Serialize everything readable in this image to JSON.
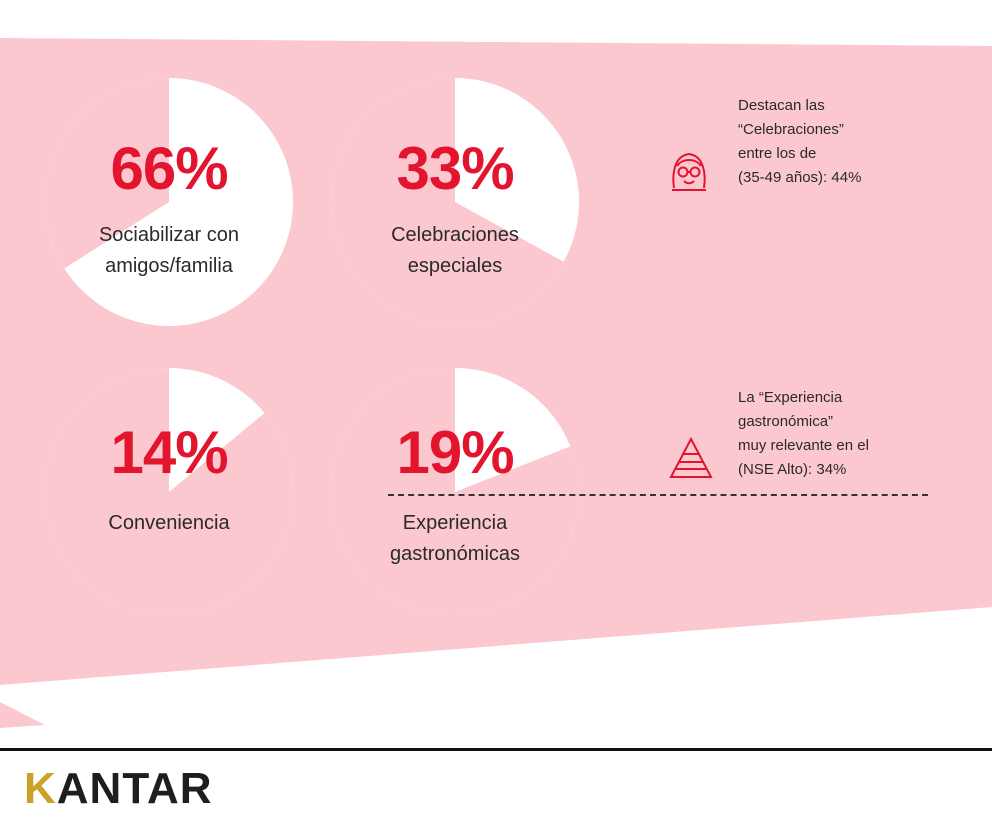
{
  "chart_data": {
    "type": "pie",
    "slices": [
      {
        "label": "Sociabilizar con amigos/familia",
        "value": 66,
        "display": "66%"
      },
      {
        "label": "Celebraciones especiales",
        "value": 33,
        "display": "33%"
      },
      {
        "label": "Conveniencia",
        "value": 14,
        "display": "14%"
      },
      {
        "label": "Experiencia gastronómicas",
        "value": 19,
        "display": "19%"
      }
    ],
    "annotations": [
      "Destacan las\n“Celebraciones”\nentre los de\n(35-49 años): 44%",
      "La “Experiencia\ngastronómica”\nmuy relevante en el\n(NSE Alto): 34%"
    ]
  },
  "colors": {
    "background_band": "#fcc8d0",
    "accent": "#e3142e",
    "circle": "#ffffff",
    "logo_accent": "#c9a227"
  },
  "icons": [
    "woman-glasses-icon",
    "pyramid-icon"
  ],
  "footer": {
    "logo_text": "ANTAR",
    "logo_k": "K"
  }
}
